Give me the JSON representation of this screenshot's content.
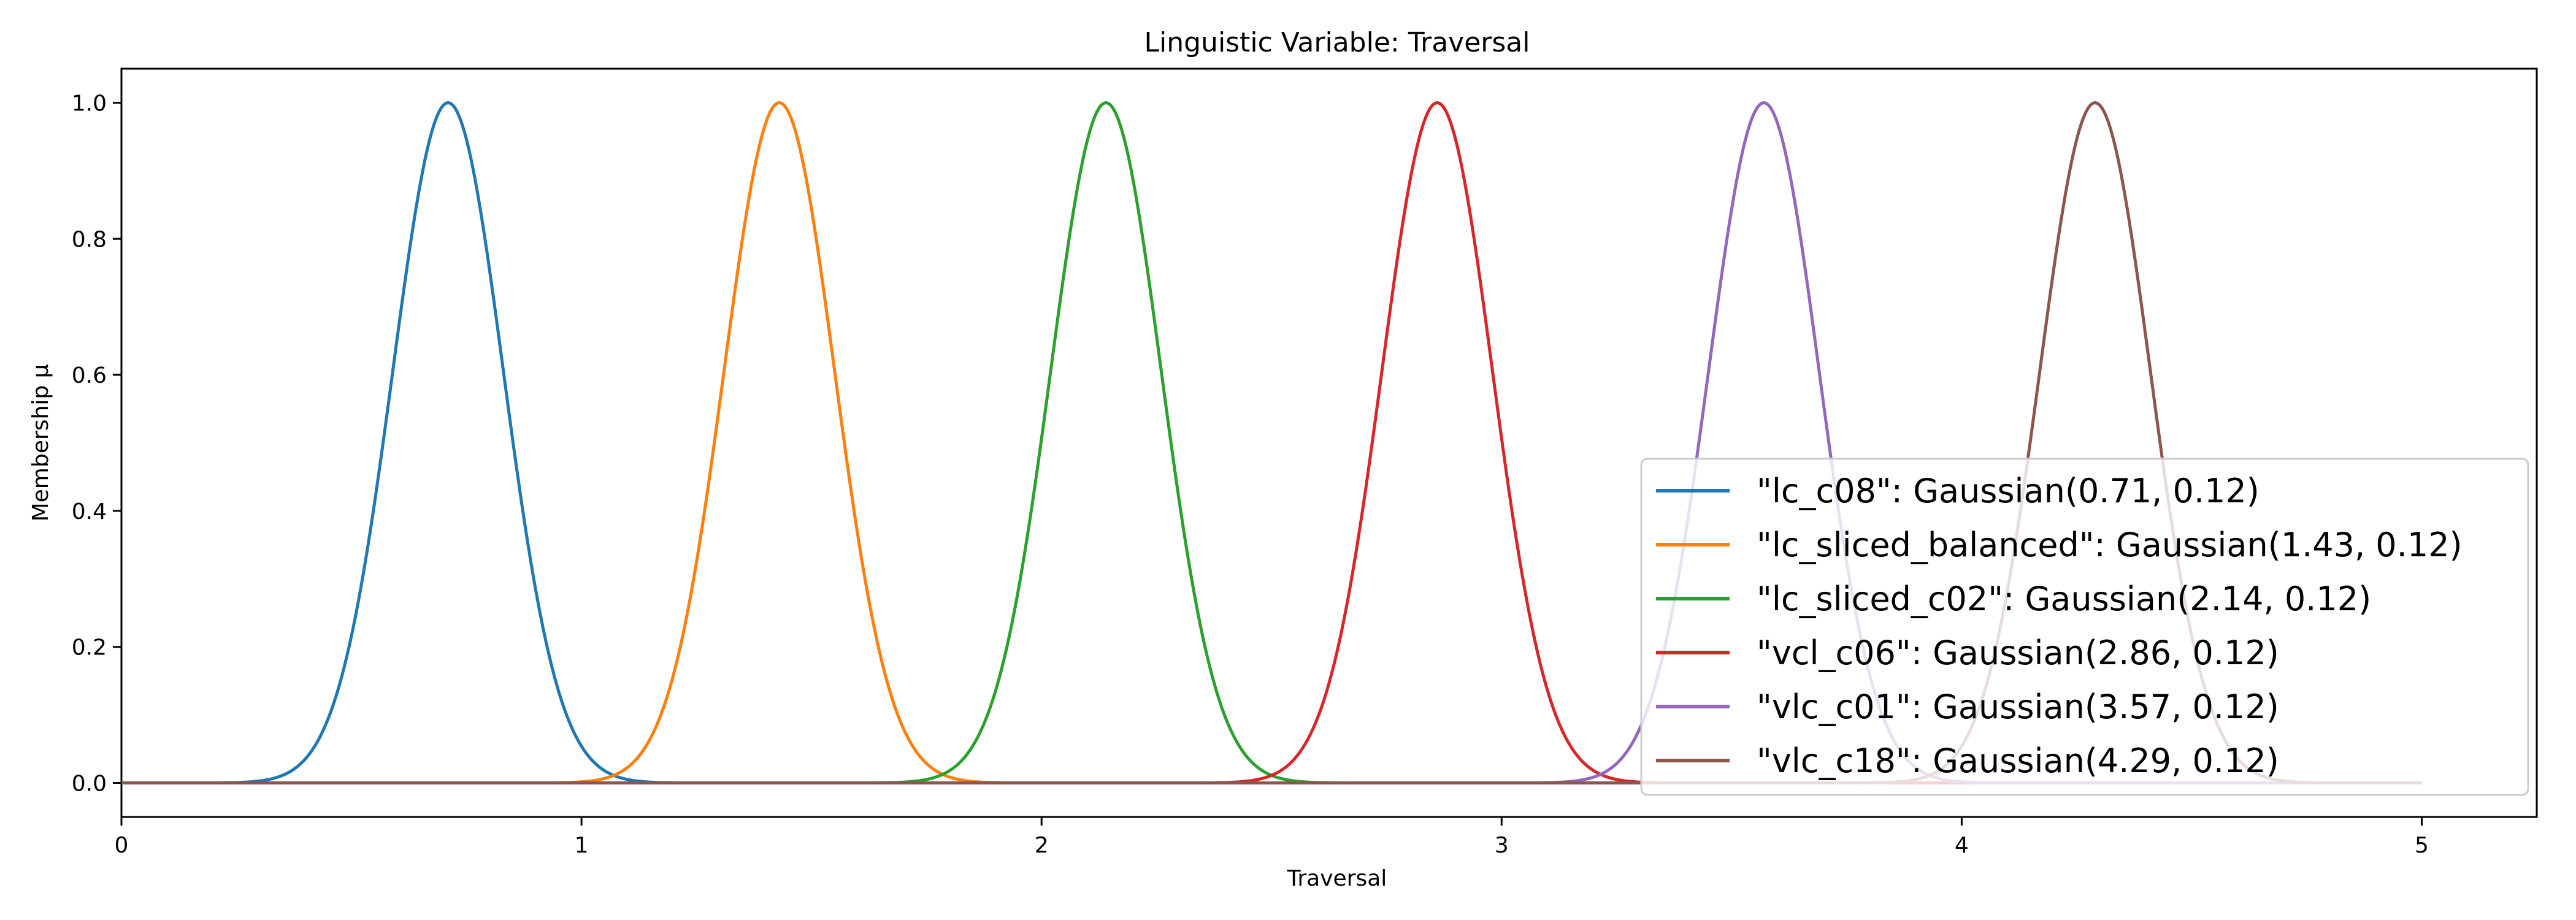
{
  "chart_data": {
    "type": "line",
    "title": "Linguistic Variable: Traversal",
    "xlabel": "Traversal",
    "ylabel": "Membership μ",
    "xlim": [
      0,
      5.25
    ],
    "ylim": [
      -0.05,
      1.05
    ],
    "x_range": [
      0,
      5
    ],
    "x_ticks": [
      0,
      1,
      2,
      3,
      4,
      5
    ],
    "y_ticks": [
      0.0,
      0.2,
      0.4,
      0.6,
      0.8,
      1.0
    ],
    "x_tick_labels": [
      "0",
      "1",
      "2",
      "3",
      "4",
      "5"
    ],
    "y_tick_labels": [
      "0.0",
      "0.2",
      "0.4",
      "0.6",
      "0.8",
      "1.0"
    ],
    "grid": false,
    "legend_position": "lower-right",
    "series": [
      {
        "name": "\"lc_c08\": Gaussian(0.71, 0.12)",
        "function": "gaussian",
        "mean": 0.71,
        "sigma": 0.12,
        "color": "#1f77b4"
      },
      {
        "name": "\"lc_sliced_balanced\": Gaussian(1.43, 0.12)",
        "function": "gaussian",
        "mean": 1.43,
        "sigma": 0.12,
        "color": "#ff7f0e"
      },
      {
        "name": "\"lc_sliced_c02\": Gaussian(2.14, 0.12)",
        "function": "gaussian",
        "mean": 2.14,
        "sigma": 0.12,
        "color": "#2ca02c"
      },
      {
        "name": "\"vcl_c06\": Gaussian(2.86, 0.12)",
        "function": "gaussian",
        "mean": 2.86,
        "sigma": 0.12,
        "color": "#d62728"
      },
      {
        "name": "\"vlc_c01\": Gaussian(3.57, 0.12)",
        "function": "gaussian",
        "mean": 3.57,
        "sigma": 0.12,
        "color": "#9467bd"
      },
      {
        "name": "\"vlc_c18\": Gaussian(4.29, 0.12)",
        "function": "gaussian",
        "mean": 4.29,
        "sigma": 0.12,
        "color": "#8c564b"
      }
    ]
  }
}
